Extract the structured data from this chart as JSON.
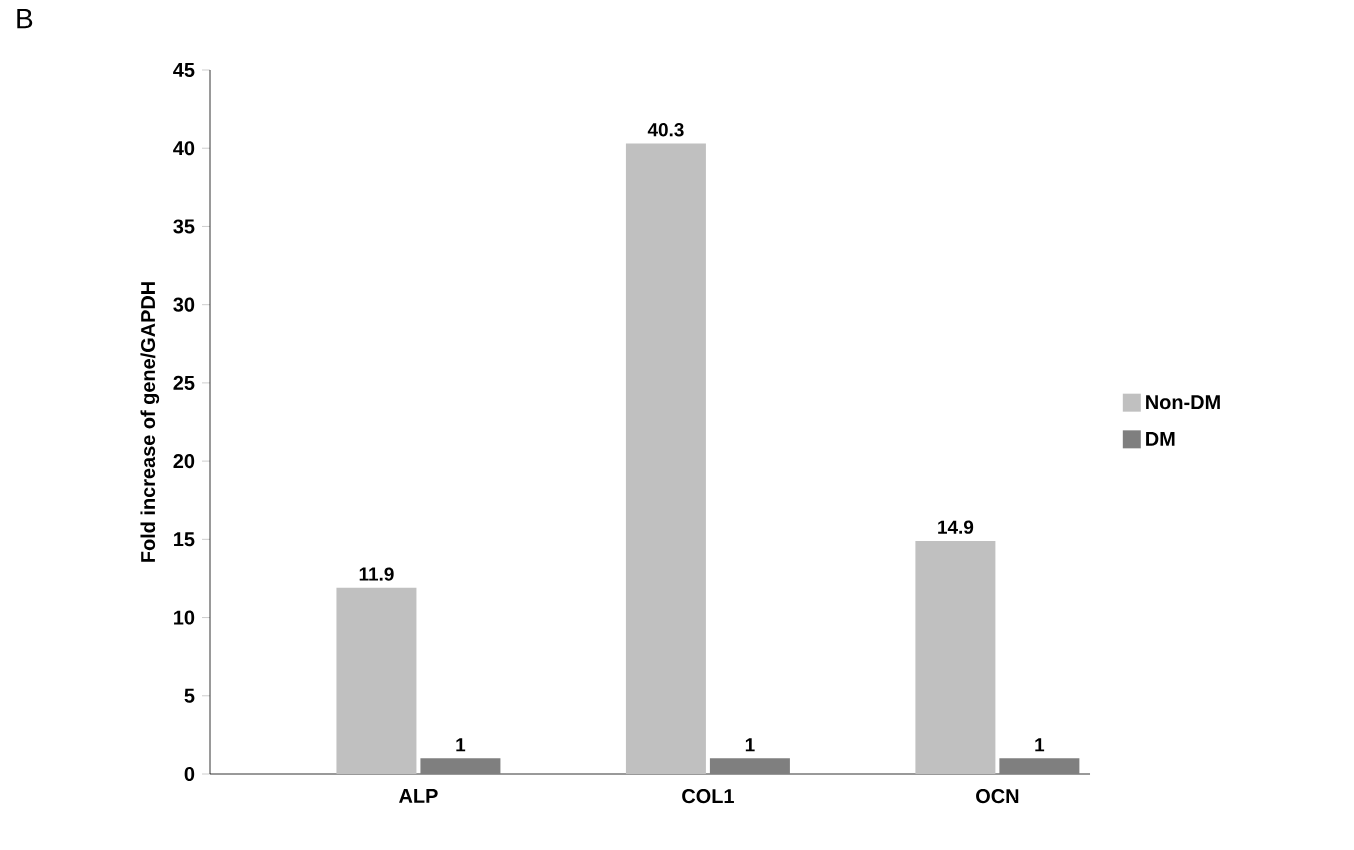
{
  "chart_data": {
    "type": "bar",
    "ylabel": "Fold increase of gene/GAPDH",
    "annotations": [
      "B"
    ],
    "categories": [
      "ALP",
      "COL1",
      "OCN"
    ],
    "series": [
      {
        "name": "Non-DM",
        "color": "#c0c0c0",
        "values": [
          11.9,
          40.3,
          14.9
        ]
      },
      {
        "name": "DM",
        "color": "#7f7f7f",
        "values": [
          1,
          1,
          1
        ]
      }
    ],
    "ylim": [
      0,
      45
    ],
    "yticks": [
      0,
      5,
      10,
      15,
      20,
      25,
      30,
      35,
      40,
      45
    ],
    "grid": false,
    "legend": "right",
    "data_labels": true
  }
}
